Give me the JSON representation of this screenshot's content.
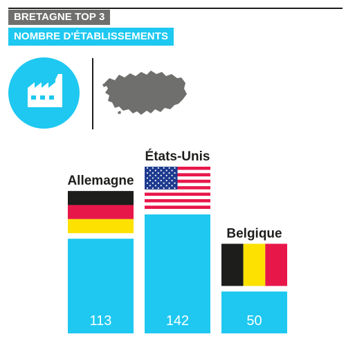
{
  "header": {
    "tag_top": "BRETAGNE TOP 3",
    "tag_sub": "NOMBRE D'ÉTABLISSEMENTS"
  },
  "icons": [
    "factory-icon",
    "brittany-map-icon"
  ],
  "colors": {
    "accent": "#1ec8f0",
    "tag_dark": "#6f6f6e",
    "map_gray": "#6f6f6e",
    "text": "#1d1d1b"
  },
  "chart_data": {
    "type": "bar",
    "categories": [
      "Allemagne",
      "États-Unis",
      "Belgique"
    ],
    "values": [
      113,
      142,
      50
    ],
    "flags": [
      "germany-flag",
      "usa-flag",
      "belgium-flag"
    ],
    "title": "NOMBRE D'ÉTABLISSEMENTS",
    "xlabel": "",
    "ylabel": "",
    "ylim": [
      0,
      142
    ],
    "grid": false,
    "legend": "none"
  }
}
